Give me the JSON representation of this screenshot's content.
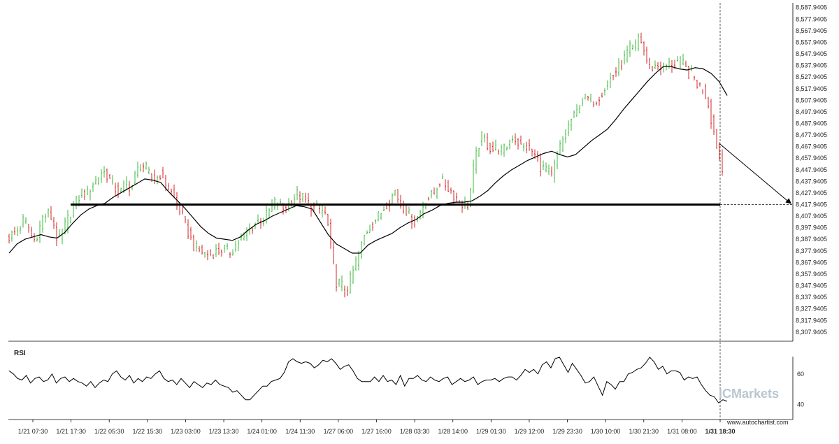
{
  "chart_data": [
    {
      "type": "candlestick",
      "title": "",
      "ylim": [
        8300,
        8592
      ],
      "y_tick_labels": [
        "8,587.9405",
        "8,577.9405",
        "8,567.9405",
        "8,557.9405",
        "8,547.9405",
        "8,537.9405",
        "8,527.9405",
        "8,517.9405",
        "8,507.9405",
        "8,497.9405",
        "8,487.9405",
        "8,477.9405",
        "8,467.9405",
        "8,457.9405",
        "8,447.9405",
        "8,437.9405",
        "8,427.9405",
        "8,417.9405",
        "8,407.9405",
        "8,397.9405",
        "8,387.9405",
        "8,377.9405",
        "8,367.9405",
        "8,357.9405",
        "8,347.9405",
        "8,337.9405",
        "8,327.9405",
        "8,317.9405",
        "8,307.9405"
      ],
      "y_tick_values": [
        8587.9405,
        8577.9405,
        8567.9405,
        8557.9405,
        8547.9405,
        8537.9405,
        8527.9405,
        8517.9405,
        8507.9405,
        8497.9405,
        8487.9405,
        8477.9405,
        8467.9405,
        8457.9405,
        8447.9405,
        8437.9405,
        8427.9405,
        8417.9405,
        8407.9405,
        8397.9405,
        8387.9405,
        8377.9405,
        8367.9405,
        8357.9405,
        8347.9405,
        8337.9405,
        8327.9405,
        8317.9405,
        8307.9405
      ],
      "x_tick_labels": [
        "1/21 07:30",
        "1/21 17:30",
        "1/22 05:30",
        "1/22 15:30",
        "1/23 03:00",
        "1/23 13:30",
        "1/24 01:00",
        "1/24 11:30",
        "1/27 06:00",
        "1/27 16:00",
        "1/28 03:30",
        "1/28 14:00",
        "1/29 01:30",
        "1/29 12:00",
        "1/29 23:30",
        "1/30 10:00",
        "1/30 21:30",
        "1/31 08:00",
        "1/31 18:30"
      ],
      "close_path": [
        8390,
        8393,
        8397,
        8405,
        8398,
        8386,
        8395,
        8408,
        8410,
        8404,
        8384,
        8396,
        8405,
        8415,
        8422,
        8429,
        8427,
        8436,
        8440,
        8447,
        8444,
        8436,
        8430,
        8429,
        8437,
        8432,
        8445,
        8453,
        8449,
        8441,
        8440,
        8445,
        8437,
        8430,
        8421,
        8413,
        8401,
        8390,
        8380,
        8378,
        8376,
        8375,
        8377,
        8378,
        8380,
        8376,
        8381,
        8386,
        8390,
        8397,
        8400,
        8404,
        8405,
        8410,
        8418,
        8420,
        8414,
        8417,
        8422,
        8427,
        8424,
        8420,
        8416,
        8414,
        8413,
        8408,
        8375,
        8351,
        8349,
        8340,
        8355,
        8368,
        8381,
        8394,
        8400,
        8405,
        8410,
        8418,
        8422,
        8430,
        8419,
        8415,
        8408,
        8403,
        8410,
        8420,
        8424,
        8427,
        8438,
        8437,
        8432,
        8427,
        8422,
        8418,
        8417,
        8447,
        8468,
        8478,
        8469,
        8465,
        8467,
        8463,
        8469,
        8477,
        8473,
        8466,
        8468,
        8464,
        8458,
        8449,
        8449,
        8440,
        8457,
        8470,
        8480,
        8491,
        8495,
        8507,
        8509,
        8509,
        8508,
        8513,
        8519,
        8526,
        8532,
        8537,
        8544,
        8552,
        8551,
        8565,
        8550,
        8536,
        8537,
        8538,
        8536,
        8539,
        8539,
        8542,
        8539,
        8532,
        8529,
        8521,
        8518,
        8508,
        8486,
        8467,
        8447
      ],
      "moving_average_path": [
        8376,
        8384,
        8388,
        8390,
        8392,
        8390,
        8389,
        8394,
        8402,
        8409,
        8414,
        8417,
        8419,
        8424,
        8428,
        8432,
        8436,
        8440,
        8439,
        8437,
        8429,
        8422,
        8415,
        8407,
        8399,
        8393,
        8389,
        8388,
        8387,
        8390,
        8396,
        8401,
        8404,
        8408,
        8411,
        8414,
        8417,
        8416,
        8414,
        8403,
        8392,
        8384,
        8380,
        8376,
        8376,
        8383,
        8387,
        8390,
        8393,
        8398,
        8402,
        8405,
        8410,
        8413,
        8417,
        8419,
        8420,
        8420,
        8421,
        8425,
        8430,
        8437,
        8443,
        8448,
        8452,
        8456,
        8459,
        8462,
        8464,
        8461,
        8459,
        8461,
        8467,
        8473,
        8478,
        8483,
        8491,
        8500,
        8508,
        8516,
        8524,
        8531,
        8537,
        8537,
        8535,
        8534,
        8536,
        8535,
        8531,
        8524,
        8512
      ],
      "support_level": 8417.9,
      "forecast_target": 8418.5,
      "current_time_label": "1/31 18:30"
    },
    {
      "type": "line",
      "title": "RSI",
      "ylim": [
        30,
        76
      ],
      "y_tick_labels": [
        "60",
        "40"
      ],
      "y_tick_values": [
        60,
        40
      ],
      "values": [
        62,
        60,
        57,
        56,
        59,
        54,
        57,
        58,
        55,
        56,
        60,
        54,
        57,
        58,
        55,
        57,
        55,
        54,
        52,
        55,
        51,
        54,
        56,
        55,
        60,
        62,
        58,
        56,
        59,
        54,
        57,
        55,
        58,
        57,
        60,
        62,
        57,
        55,
        56,
        53,
        57,
        54,
        51,
        55,
        53,
        51,
        54,
        53,
        56,
        53,
        52,
        51,
        48,
        49,
        46,
        43,
        43,
        46,
        49,
        52,
        52,
        55,
        56,
        57,
        61,
        68,
        70,
        68,
        67,
        68,
        67,
        64,
        66,
        69,
        68,
        70,
        67,
        63,
        65,
        66,
        62,
        57,
        55,
        55,
        55,
        58,
        55,
        59,
        55,
        56,
        53,
        59,
        52,
        57,
        57,
        59,
        56,
        55,
        58,
        56,
        55,
        57,
        58,
        53,
        55,
        57,
        55,
        56,
        58,
        53,
        55,
        56,
        56,
        57,
        55,
        57,
        58,
        58,
        56,
        59,
        63,
        61,
        63,
        60,
        66,
        68,
        64,
        70,
        71,
        66,
        61,
        67,
        63,
        59,
        54,
        55,
        58,
        52,
        46,
        55,
        53,
        50,
        55,
        55,
        60,
        61,
        63,
        64,
        67,
        71,
        68,
        63,
        65,
        60,
        62,
        62,
        61,
        56,
        58,
        57,
        58,
        53,
        49,
        46,
        45,
        41,
        43,
        42
      ]
    }
  ],
  "watermark": {
    "text": "ICMarkets",
    "color": "#b9c6cf"
  },
  "brand_link": "www.autochartist.com",
  "colors": {
    "up": "#3db83d",
    "down": "#d6272a",
    "line": "#000000",
    "grid": "#cccccc"
  }
}
